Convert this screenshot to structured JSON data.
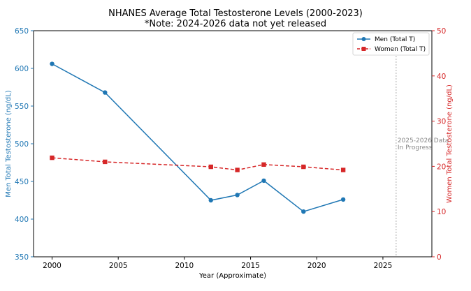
{
  "chart_data": {
    "type": "line",
    "title": "NHANES Average Total Testosterone Levels (2000-2023)",
    "subtitle": "*Note: 2024-2026 data not yet released",
    "xlabel": "Year (Approximate)",
    "ylabel_left": "Men Total Testosterone (ng/dL)",
    "ylabel_right": "Women Total Testosterone (ng/dL)",
    "xlim": [
      1998.6,
      2028.7
    ],
    "ylim_left": [
      350,
      650
    ],
    "ylim_right": [
      0,
      50
    ],
    "x_ticks": [
      2000,
      2005,
      2010,
      2015,
      2020,
      2025
    ],
    "y_ticks_left": [
      350,
      400,
      450,
      500,
      550,
      600,
      650
    ],
    "y_ticks_right": [
      0,
      10,
      20,
      30,
      40,
      50
    ],
    "grid": false,
    "legend_position": "top-right",
    "series": [
      {
        "name": "Men (Total T)",
        "axis": "left",
        "color": "#1f77b4",
        "marker": "circle",
        "linestyle": "solid",
        "x": [
          2000,
          2004,
          2012,
          2014,
          2016,
          2019,
          2022
        ],
        "values": [
          606,
          568,
          425,
          432,
          451,
          410,
          426
        ]
      },
      {
        "name": "Women (Total T)",
        "axis": "right",
        "color": "#d62728",
        "marker": "square",
        "linestyle": "dashed",
        "x": [
          2000,
          2004,
          2012,
          2014,
          2016,
          2019,
          2022
        ],
        "values": [
          21.9,
          21.0,
          19.9,
          19.2,
          20.4,
          19.9,
          19.2
        ]
      }
    ],
    "annotation": {
      "line_x": 2026,
      "text_lines": [
        "2025-2026 Data",
        "In Progress"
      ]
    },
    "colors": {
      "left_axis": "#1f77b4",
      "right_axis": "#d62728",
      "annotation": "#888888"
    }
  }
}
